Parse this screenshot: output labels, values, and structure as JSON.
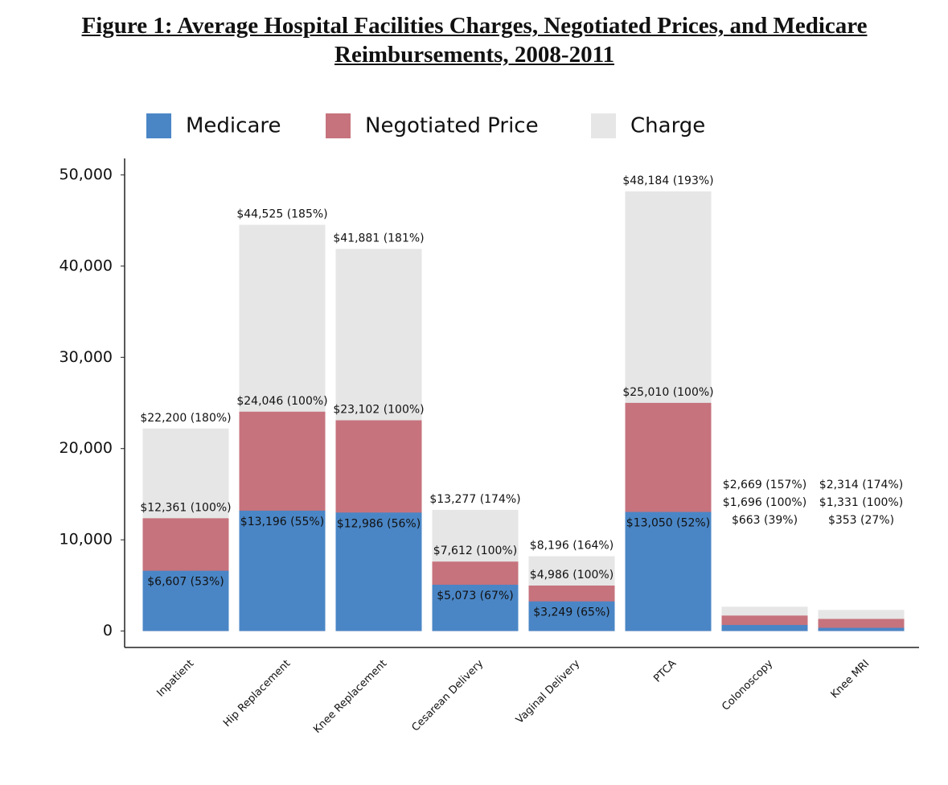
{
  "chart_data": {
    "type": "overlapping_bar",
    "title": "Figure 1: Average Hospital Facilities Charges, Negotiated Prices, and Medicare Reimbursements, 2008-2011",
    "categories": [
      "Inpatient",
      "Hip Replacement",
      "Knee Replacement",
      "Cesarean Delivery",
      "Vaginal Delivery",
      "PTCA",
      "Colonoscopy",
      "Knee MRI"
    ],
    "series": [
      {
        "name": "Medicare",
        "color": "#4a86c6",
        "values": [
          6607,
          13196,
          12986,
          5073,
          3249,
          13050,
          663,
          353
        ],
        "value_labels": [
          "$6,607 (53%)",
          "$13,196 (55%)",
          "$12,986 (56%)",
          "$5,073 (67%)",
          "$3,249 (65%)",
          "$13,050 (52%)",
          "$663 (39%)",
          "$353 (27%)"
        ]
      },
      {
        "name": "Negotiated Price",
        "color": "#c6737d",
        "values": [
          12361,
          24046,
          23102,
          7612,
          4986,
          25010,
          1696,
          1331
        ],
        "value_labels": [
          "$12,361 (100%)",
          "$24,046 (100%)",
          "$23,102 (100%)",
          "$7,612 (100%)",
          "$4,986 (100%)",
          "$25,010 (100%)",
          "$1,696 (100%)",
          "$1,331 (100%)"
        ]
      },
      {
        "name": "Charge",
        "color": "#e6e6e6",
        "values": [
          22200,
          44525,
          41881,
          13277,
          8196,
          48184,
          2669,
          2314
        ],
        "value_labels": [
          "$22,200 (180%)",
          "$44,525 (185%)",
          "$41,881 (181%)",
          "$13,277 (174%)",
          "$8,196 (164%)",
          "$48,184 (193%)",
          "$2,669 (157%)",
          "$2,314 (174%)"
        ]
      }
    ],
    "ylim": [
      -1800,
      51800
    ],
    "yticks": [
      0,
      {
        "value": 10000,
        "label": "10,000"
      },
      {
        "value": 20000,
        "label": "20,000"
      },
      {
        "value": 30000,
        "label": "30,000"
      },
      {
        "value": 40000,
        "label": "40,000"
      },
      {
        "value": 50000,
        "label": "50,000"
      }
    ],
    "legend": "top"
  }
}
